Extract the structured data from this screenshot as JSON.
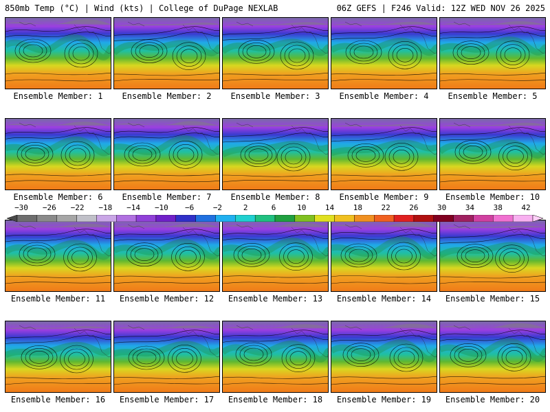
{
  "header": {
    "left": "850mb Temp (°C) | Wind (kts) | College of DuPage NEXLAB",
    "right": "06Z GEFS | F246 Valid: 12Z WED NOV 26 2025"
  },
  "panels": [
    {
      "label": "Ensemble Member: 1"
    },
    {
      "label": "Ensemble Member: 2"
    },
    {
      "label": "Ensemble Member: 3"
    },
    {
      "label": "Ensemble Member: 4"
    },
    {
      "label": "Ensemble Member: 5"
    },
    {
      "label": "Ensemble Member: 6"
    },
    {
      "label": "Ensemble Member: 7"
    },
    {
      "label": "Ensemble Member: 8"
    },
    {
      "label": "Ensemble Member: 9"
    },
    {
      "label": "Ensemble Member: 10"
    },
    {
      "label": "Ensemble Member: 11"
    },
    {
      "label": "Ensemble Member: 12"
    },
    {
      "label": "Ensemble Member: 13"
    },
    {
      "label": "Ensemble Member: 14"
    },
    {
      "label": "Ensemble Member: 15"
    },
    {
      "label": "Ensemble Member: 16"
    },
    {
      "label": "Ensemble Member: 17"
    },
    {
      "label": "Ensemble Member: 18"
    },
    {
      "label": "Ensemble Member: 19"
    },
    {
      "label": "Ensemble Member: 20"
    }
  ],
  "colorbar": {
    "ticks": [
      "-30",
      "-26",
      "-22",
      "-18",
      "-14",
      "-10",
      "-6",
      "-2",
      "2",
      "6",
      "10",
      "14",
      "18",
      "22",
      "26",
      "30",
      "34",
      "38",
      "42"
    ],
    "colors": [
      "#6e6e6e",
      "#8a8a8a",
      "#a6a6a6",
      "#c0c0c8",
      "#c9a6e6",
      "#b070e0",
      "#9040d8",
      "#7020c8",
      "#3030c8",
      "#2070e0",
      "#20b0f0",
      "#20d0d0",
      "#20c080",
      "#20a040",
      "#80c020",
      "#e0e020",
      "#f0c020",
      "#f09020",
      "#f06020",
      "#e02020",
      "#b01010",
      "#800020",
      "#a02060",
      "#d040a0",
      "#f070d0",
      "#f8b0f0"
    ]
  }
}
